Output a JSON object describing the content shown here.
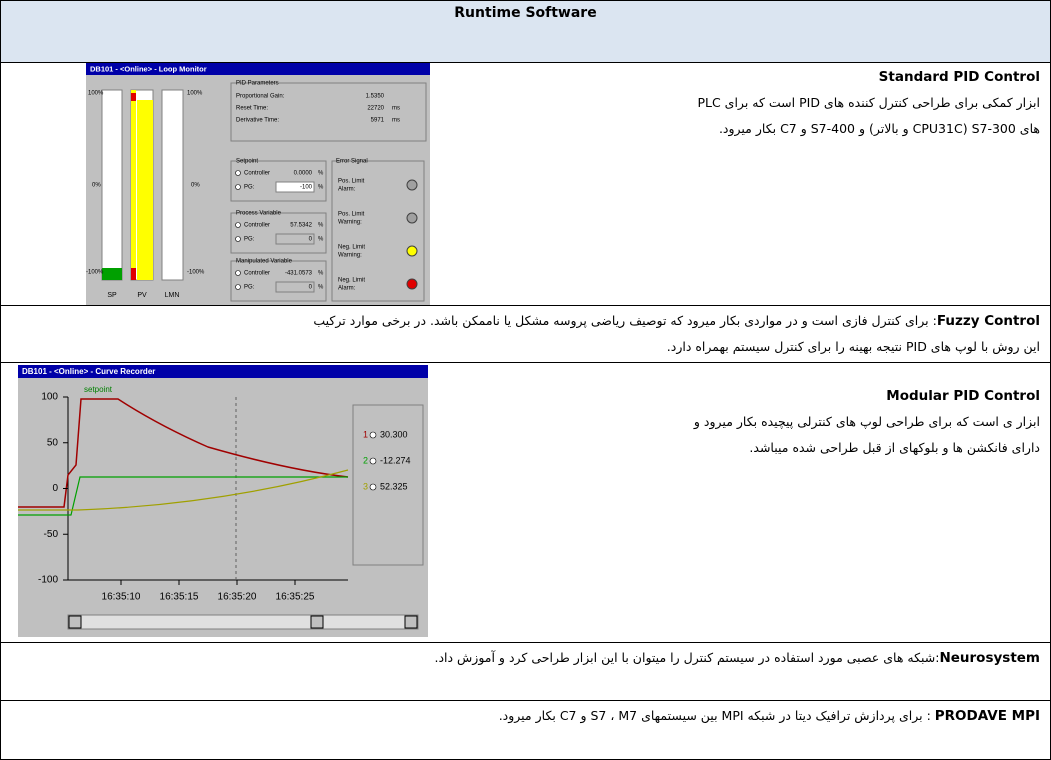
{
  "header": {
    "title": "Runtime Software"
  },
  "rows": [
    {
      "title": "Standard PID Control",
      "lines": [
        "ابزار کمکی برای طراحی کنترل کننده های  PID است که برای PLC",
        "های S7-300 (CPU31C و بالاتر) و  S7-400 و C7 بکار میرود."
      ]
    },
    {
      "title": "Fuzzy  Control",
      "lines": [
        ": برای کنترل فازی  است و در مواردی بکار میرود که توصیف ریاضی پروسه مشکل یا ناممکن باشد. در برخی موارد ترکیب",
        "این روش با لوپ های PID  نتیجه بهینه را برای کنترل سیستم بهمراه دارد."
      ]
    },
    {
      "title": "Modular PID Control",
      "lines": [
        "ابزار ی است که برای طراحی لوپ های کنترلی پیچیده بکار میرود و",
        "دارای فانکشن ها و بلوکهای از قبل طراحی شده میباشد."
      ]
    },
    {
      "title": "Neurosystem",
      "lines": [
        ":شبکه های عصبی مورد استفاده در سیستم کنترل را میتوان با این ابزار طراحی کرد و آموزش داد."
      ]
    },
    {
      "title": "PRODAVE MPI",
      "lines": [
        " : برای پردازش ترافیک دیتا در شبکه  MPI بین سیستمهای  S7 ،  M7  و  C7 بکار میرود."
      ]
    }
  ],
  "loop_monitor": {
    "window_title": "DB101 - <Online> - Loop Monitor",
    "scale": [
      "100%",
      "0%",
      "-100%"
    ],
    "bars": [
      "SP",
      "PV",
      "LMN"
    ],
    "pid_parameters": "PID Parameters",
    "params": [
      [
        "Proportional Gain:",
        "1.5350",
        ""
      ],
      [
        "Reset Time:",
        "22720",
        "ms"
      ],
      [
        "Derivative Time:",
        "5971",
        "ms"
      ]
    ],
    "setpoint": {
      "title": "Setpoint",
      "controller": "Controller",
      "controller_value": "0.0000",
      "pg": "PG:",
      "pg_value": "-100",
      "unit": "%"
    },
    "process_variable": {
      "title": "Process Variable",
      "controller": "Controller",
      "controller_value": "57.5342",
      "pg": "PG:",
      "pg_value": "0",
      "unit": "%"
    },
    "manipulated_variable": {
      "title": "Manipulated Variable",
      "controller": "Controller",
      "controller_value": "-431.0573",
      "pg": "PG:",
      "pg_value": "0",
      "unit": "%"
    },
    "error_signal": {
      "title": "Error Signal",
      "items": [
        [
          "Pos. Limit",
          "Alarm:"
        ],
        [
          "Pos. Limit",
          "Warning:"
        ],
        [
          "Neg. Limit",
          "Warning:"
        ],
        [
          "Neg. Limit",
          "Alarm:"
        ]
      ]
    }
  },
  "curve_recorder": {
    "window_title": "DB101 - <Online> - Curve Recorder",
    "setpoint_label": "setpoint",
    "y_labels": [
      "100",
      "50",
      "0",
      "-50",
      "-100"
    ],
    "x_labels": [
      "16:35:10",
      "16:35:15",
      "16:35:20",
      "16:35:25"
    ],
    "legend": [
      [
        "1",
        "30.300"
      ],
      [
        "2",
        "-12.274"
      ],
      [
        "3",
        "52.325"
      ]
    ]
  }
}
